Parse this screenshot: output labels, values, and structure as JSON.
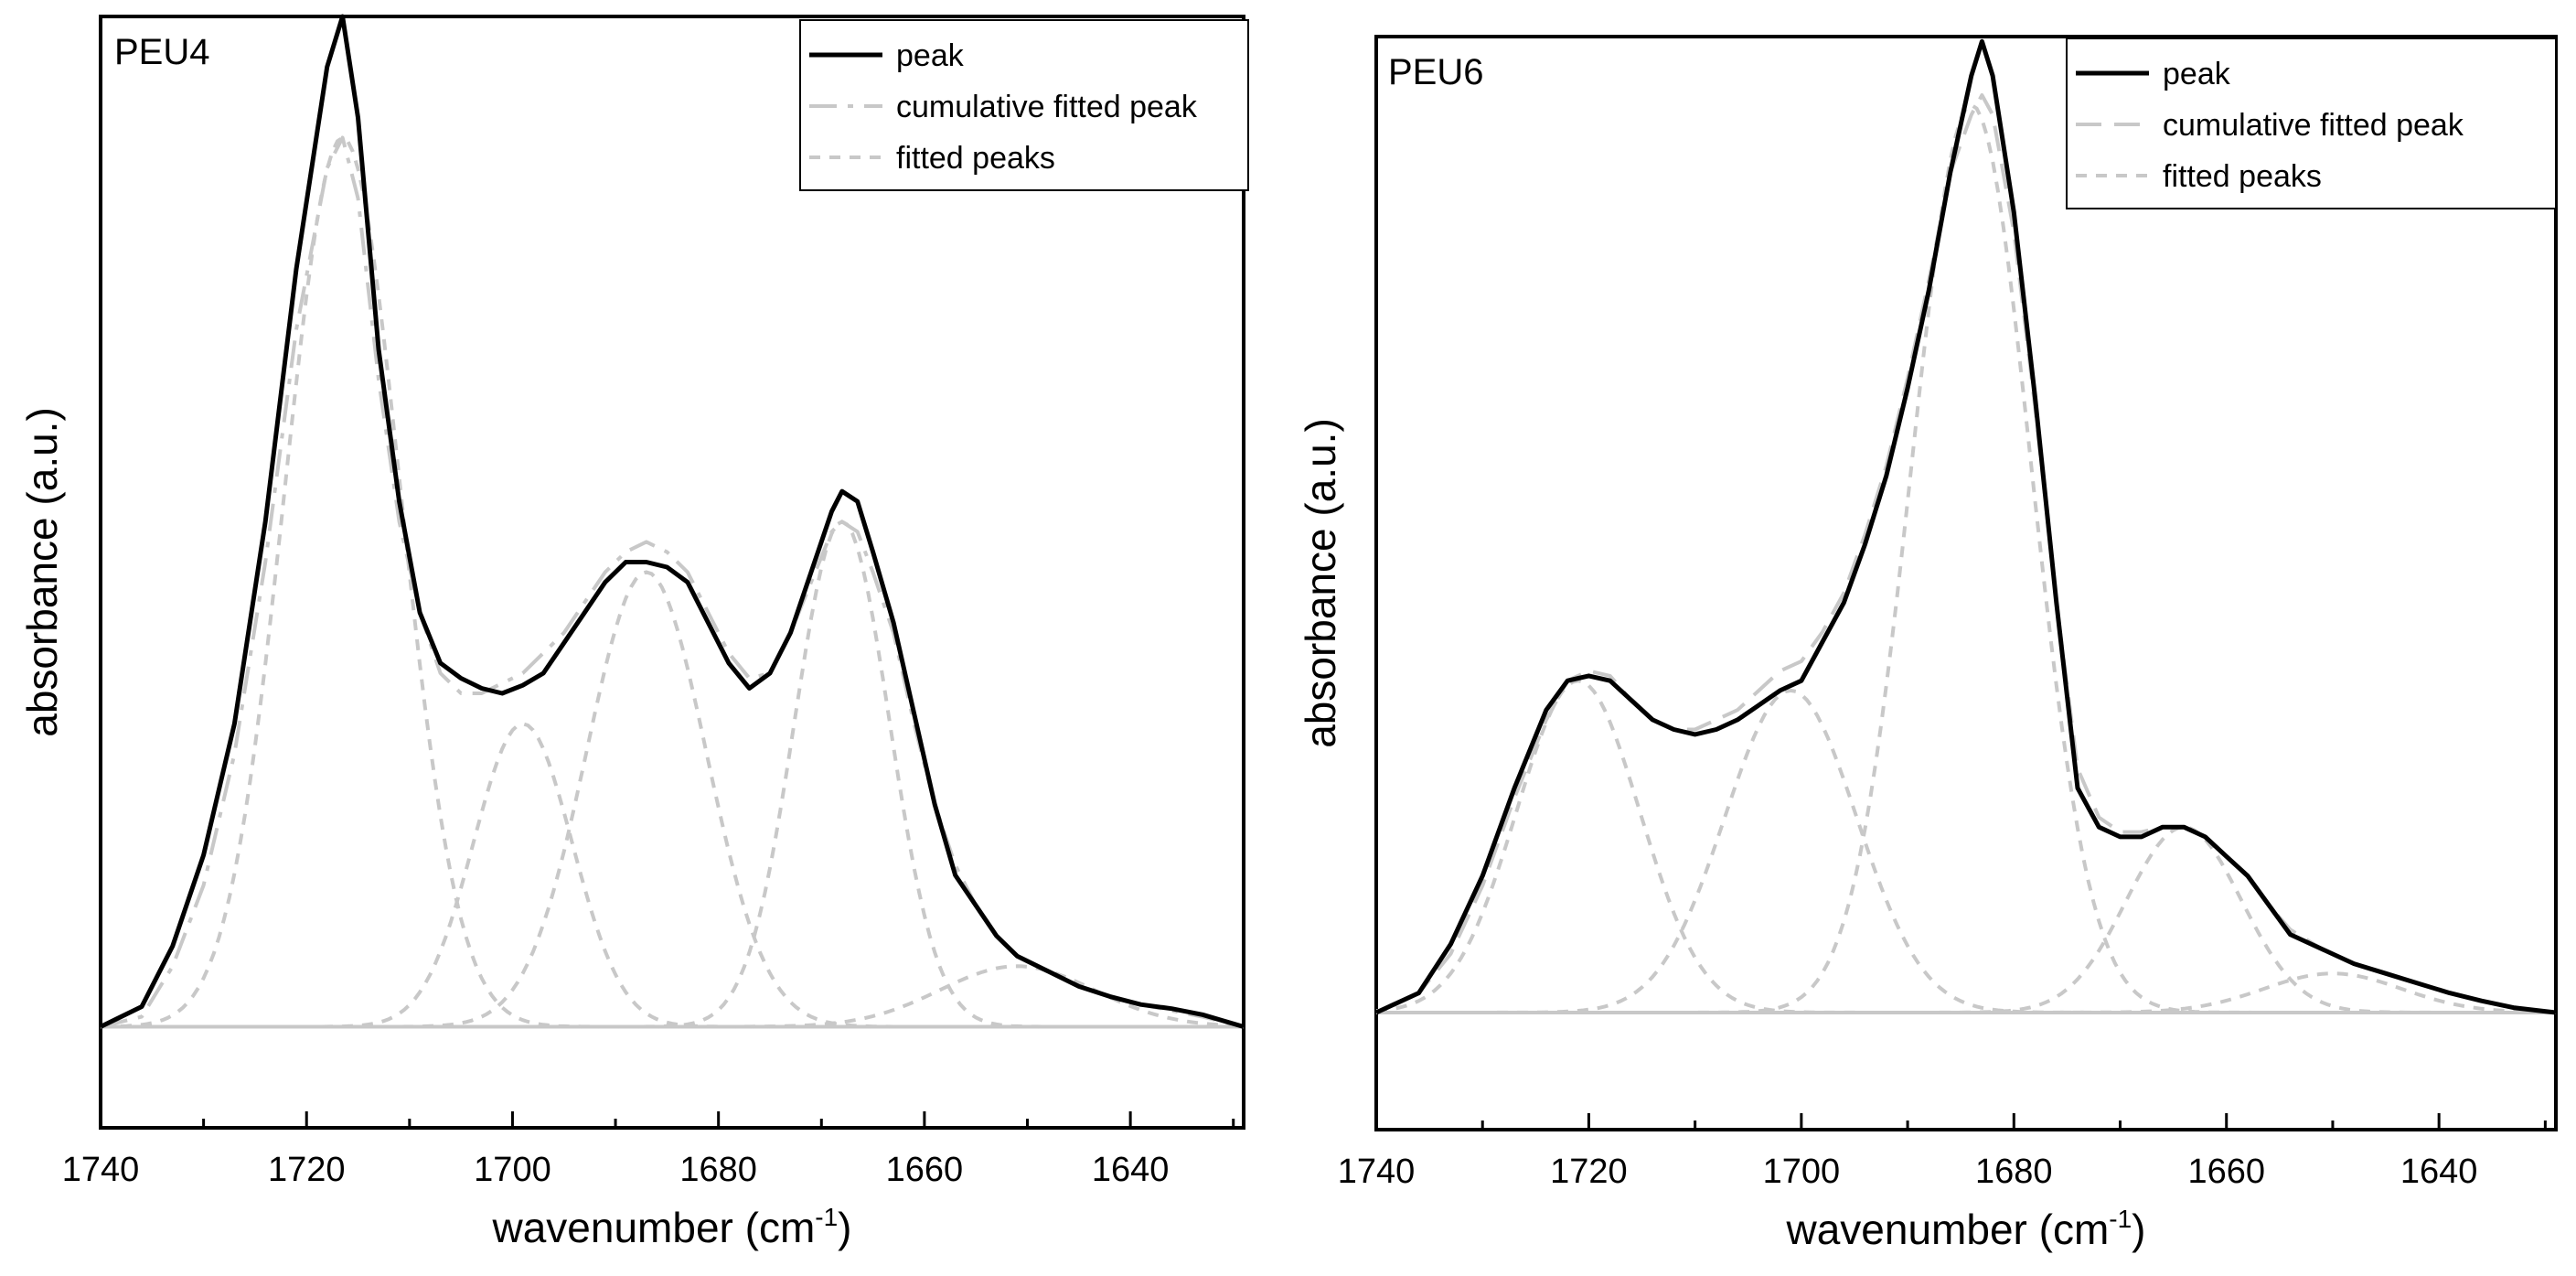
{
  "chart_data": [
    {
      "type": "line",
      "panel_label": "PEU4",
      "xlabel": "wavenumber (cm",
      "xlabel_sup": "-1",
      "xlabel_close": ")",
      "ylabel": "absorbance (a.u.)",
      "xlim": [
        1740,
        1629
      ],
      "ylim": [
        -0.1,
        1.0
      ],
      "xticks": [
        1740,
        1720,
        1700,
        1680,
        1660,
        1640
      ],
      "xtick_labels": [
        "1740",
        "1720",
        "1700",
        "1680",
        "1660",
        "1640"
      ],
      "grid": false,
      "legend_position": "top-right",
      "legend": [
        "peak",
        "cumulative fitted peak",
        "fitted peaks"
      ],
      "series": [
        {
          "name": "peak",
          "style": "solid",
          "color": "#000000",
          "x": [
            1740,
            1736,
            1733,
            1730,
            1727,
            1724,
            1721,
            1718,
            1716.5,
            1715,
            1713,
            1711,
            1709,
            1707,
            1705,
            1703,
            1701,
            1699,
            1697,
            1695,
            1693,
            1691,
            1689,
            1687,
            1685,
            1683,
            1681,
            1679,
            1677,
            1675,
            1673,
            1671,
            1669,
            1668,
            1666.5,
            1665,
            1663,
            1661,
            1659,
            1657,
            1655,
            1653,
            1651,
            1648,
            1645,
            1642,
            1639,
            1636,
            1633,
            1629
          ],
          "y": [
            0.0,
            0.02,
            0.08,
            0.17,
            0.3,
            0.5,
            0.75,
            0.95,
            1.0,
            0.9,
            0.67,
            0.52,
            0.41,
            0.36,
            0.345,
            0.335,
            0.33,
            0.338,
            0.35,
            0.38,
            0.41,
            0.44,
            0.46,
            0.46,
            0.455,
            0.44,
            0.4,
            0.36,
            0.335,
            0.35,
            0.39,
            0.45,
            0.51,
            0.53,
            0.52,
            0.47,
            0.4,
            0.31,
            0.22,
            0.15,
            0.12,
            0.09,
            0.07,
            0.055,
            0.04,
            0.03,
            0.022,
            0.018,
            0.012,
            0.0
          ]
        },
        {
          "name": "cumulative fitted peak",
          "style": "dashdot",
          "color": "#c8c8c8",
          "x": [
            1740,
            1736,
            1733,
            1730,
            1727,
            1724,
            1721,
            1718,
            1716.5,
            1715,
            1713,
            1711,
            1709,
            1707,
            1705,
            1703,
            1701,
            1699,
            1697,
            1695,
            1693,
            1691,
            1689,
            1687,
            1685,
            1683,
            1681,
            1679,
            1677,
            1675,
            1673,
            1671,
            1669,
            1668,
            1666.5,
            1665,
            1663,
            1661,
            1659,
            1657,
            1655,
            1653,
            1651,
            1648,
            1645,
            1642,
            1639,
            1636,
            1633,
            1629
          ],
          "y": [
            0.0,
            0.01,
            0.06,
            0.14,
            0.27,
            0.46,
            0.69,
            0.85,
            0.88,
            0.82,
            0.64,
            0.5,
            0.41,
            0.35,
            0.33,
            0.33,
            0.34,
            0.35,
            0.37,
            0.39,
            0.42,
            0.45,
            0.47,
            0.48,
            0.47,
            0.45,
            0.41,
            0.37,
            0.345,
            0.35,
            0.39,
            0.44,
            0.49,
            0.5,
            0.49,
            0.45,
            0.39,
            0.3,
            0.22,
            0.16,
            0.12,
            0.09,
            0.07,
            0.055,
            0.04,
            0.03,
            0.022,
            0.016,
            0.01,
            0.0
          ]
        },
        {
          "name": "fitted peaks",
          "style": "dotted",
          "color": "#c8c8c8",
          "peaks": [
            {
              "center": 1716.5,
              "height": 0.88,
              "width": 5.6
            },
            {
              "center": 1699,
              "height": 0.3,
              "width": 4.8
            },
            {
              "center": 1687,
              "height": 0.45,
              "width": 5.8
            },
            {
              "center": 1668,
              "height": 0.5,
              "width": 4.6
            },
            {
              "center": 1651,
              "height": 0.06,
              "width": 7.5
            }
          ]
        }
      ]
    },
    {
      "type": "line",
      "panel_label": "PEU6",
      "xlabel": "wavenumber (cm",
      "xlabel_sup": "-1",
      "xlabel_close": ")",
      "ylabel": "absorbance (a.u.)",
      "xlim": [
        1740,
        1629
      ],
      "ylim": [
        -0.12,
        1.0
      ],
      "xticks": [
        1740,
        1720,
        1700,
        1680,
        1660,
        1640
      ],
      "xtick_labels": [
        "1740",
        "1720",
        "1700",
        "1680",
        "1660",
        "1640"
      ],
      "grid": false,
      "legend_position": "top-right",
      "legend": [
        "peak",
        "cumulative fitted peak",
        "fitted peaks"
      ],
      "series": [
        {
          "name": "peak",
          "style": "solid",
          "color": "#000000",
          "x": [
            1740,
            1736,
            1733,
            1730,
            1727,
            1724,
            1722,
            1720,
            1718,
            1716,
            1714,
            1712,
            1710,
            1708,
            1706,
            1704,
            1702,
            1700,
            1698,
            1696,
            1694,
            1692,
            1690,
            1688,
            1686,
            1684,
            1683,
            1682,
            1680,
            1678,
            1676,
            1674,
            1672,
            1670,
            1668,
            1666,
            1664,
            1662,
            1660,
            1658,
            1656,
            1654,
            1651,
            1648,
            1645,
            1642,
            1639,
            1636,
            1633,
            1629
          ],
          "y": [
            0.0,
            0.02,
            0.07,
            0.14,
            0.23,
            0.31,
            0.34,
            0.345,
            0.34,
            0.32,
            0.3,
            0.29,
            0.285,
            0.29,
            0.3,
            0.315,
            0.33,
            0.34,
            0.38,
            0.42,
            0.48,
            0.55,
            0.64,
            0.74,
            0.86,
            0.96,
            0.995,
            0.96,
            0.82,
            0.63,
            0.42,
            0.23,
            0.19,
            0.18,
            0.18,
            0.19,
            0.19,
            0.18,
            0.16,
            0.14,
            0.11,
            0.08,
            0.065,
            0.05,
            0.04,
            0.03,
            0.02,
            0.012,
            0.005,
            0.0
          ]
        },
        {
          "name": "cumulative fitted peak",
          "style": "dashed",
          "color": "#c8c8c8",
          "x": [
            1740,
            1736,
            1733,
            1730,
            1727,
            1724,
            1722,
            1720,
            1718,
            1716,
            1714,
            1712,
            1710,
            1708,
            1706,
            1704,
            1702,
            1700,
            1698,
            1696,
            1694,
            1692,
            1690,
            1688,
            1686,
            1684,
            1683,
            1682,
            1680,
            1678,
            1676,
            1674,
            1672,
            1670,
            1668,
            1666,
            1664,
            1662,
            1660,
            1658,
            1656,
            1654,
            1651,
            1648,
            1645,
            1642,
            1639,
            1636,
            1633,
            1629
          ],
          "y": [
            0.0,
            0.02,
            0.06,
            0.13,
            0.22,
            0.3,
            0.34,
            0.35,
            0.345,
            0.32,
            0.3,
            0.29,
            0.29,
            0.3,
            0.31,
            0.33,
            0.35,
            0.36,
            0.39,
            0.43,
            0.49,
            0.56,
            0.65,
            0.75,
            0.86,
            0.92,
            0.94,
            0.92,
            0.8,
            0.62,
            0.42,
            0.25,
            0.2,
            0.185,
            0.185,
            0.19,
            0.19,
            0.18,
            0.16,
            0.14,
            0.11,
            0.085,
            0.065,
            0.05,
            0.04,
            0.03,
            0.02,
            0.012,
            0.005,
            0.0
          ]
        },
        {
          "name": "fitted peaks",
          "style": "dotted",
          "color": "#c8c8c8",
          "peaks": [
            {
              "center": 1721,
              "height": 0.34,
              "width": 5.8
            },
            {
              "center": 1701,
              "height": 0.33,
              "width": 6.2
            },
            {
              "center": 1684,
              "height": 0.93,
              "width": 5.6
            },
            {
              "center": 1664,
              "height": 0.19,
              "width": 5.4
            },
            {
              "center": 1650,
              "height": 0.04,
              "width": 6.5
            }
          ]
        }
      ]
    }
  ]
}
